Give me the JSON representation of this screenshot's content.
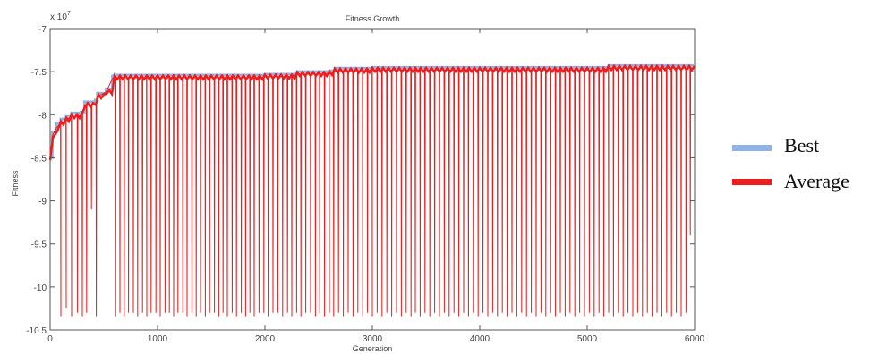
{
  "chart_data": {
    "type": "line",
    "title": "Fitness Growth",
    "xlabel": "Generation",
    "ylabel": "Fitness",
    "y_multiplier_label": "x 10",
    "y_multiplier_exponent": "7",
    "xlim": [
      0,
      6000
    ],
    "ylim": [
      -10.5,
      -7
    ],
    "x_ticks": [
      0,
      1000,
      2000,
      3000,
      4000,
      5000,
      6000
    ],
    "y_ticks": [
      -7,
      -7.5,
      -8,
      -8.5,
      -9,
      -9.5,
      -10,
      -10.5
    ],
    "y_tick_labels": [
      "-7",
      "-7.5",
      "-8",
      "-8.5",
      "-9",
      "-9.5",
      "-10",
      "-10.5"
    ],
    "legend_position": "right",
    "series": [
      {
        "name": "Best",
        "color": "#8fb4e3",
        "x": [
          0,
          20,
          60,
          100,
          150,
          200,
          290,
          320,
          420,
          440,
          520,
          580,
          600,
          900,
          1000,
          1500,
          2000,
          2300,
          2600,
          2650,
          3000,
          3500,
          4000,
          5000,
          5200,
          6000
        ],
        "y": [
          -8.5,
          -8.2,
          -8.1,
          -8.05,
          -8.02,
          -7.98,
          -7.97,
          -7.85,
          -7.83,
          -7.75,
          -7.7,
          -7.55,
          -7.54,
          -7.54,
          -7.54,
          -7.54,
          -7.53,
          -7.5,
          -7.49,
          -7.46,
          -7.45,
          -7.45,
          -7.45,
          -7.45,
          -7.43,
          -7.43
        ]
      },
      {
        "name": "Average",
        "color": "#ee1c1c",
        "plateau_x": [
          0,
          20,
          60,
          100,
          150,
          200,
          290,
          320,
          420,
          440,
          520,
          580,
          600,
          900,
          1000,
          1500,
          2000,
          2300,
          2600,
          2650,
          3000,
          3500,
          4000,
          5000,
          5200,
          6000
        ],
        "plateau_y": [
          -8.55,
          -8.25,
          -8.15,
          -8.1,
          -8.06,
          -8.02,
          -8.0,
          -7.89,
          -7.87,
          -7.79,
          -7.74,
          -7.58,
          -7.57,
          -7.57,
          -7.57,
          -7.57,
          -7.56,
          -7.53,
          -7.52,
          -7.49,
          -7.48,
          -7.48,
          -7.48,
          -7.48,
          -7.46,
          -7.46
        ],
        "dips": [
          [
            100,
            -10.35
          ],
          [
            150,
            -10.25
          ],
          [
            200,
            -10.35
          ],
          [
            255,
            -10.3
          ],
          [
            300,
            -10.35
          ],
          [
            340,
            -10.3
          ],
          [
            385,
            -9.1
          ],
          [
            430,
            -10.35
          ],
          [
            610,
            -10.35
          ],
          [
            650,
            -10.3
          ],
          [
            690,
            -10.35
          ],
          [
            730,
            -10.3
          ],
          [
            775,
            -10.3
          ],
          [
            815,
            -10.35
          ],
          [
            860,
            -10.3
          ],
          [
            900,
            -10.35
          ],
          [
            940,
            -10.3
          ],
          [
            985,
            -10.3
          ],
          [
            1025,
            -10.35
          ],
          [
            1070,
            -10.3
          ],
          [
            1110,
            -10.3
          ],
          [
            1150,
            -10.35
          ],
          [
            1190,
            -10.3
          ],
          [
            1235,
            -10.3
          ],
          [
            1275,
            -10.35
          ],
          [
            1320,
            -10.3
          ],
          [
            1360,
            -10.35
          ],
          [
            1400,
            -10.3
          ],
          [
            1445,
            -10.35
          ],
          [
            1485,
            -10.3
          ],
          [
            1530,
            -10.3
          ],
          [
            1570,
            -10.35
          ],
          [
            1610,
            -10.3
          ],
          [
            1650,
            -10.35
          ],
          [
            1695,
            -10.3
          ],
          [
            1735,
            -10.35
          ],
          [
            1780,
            -10.3
          ],
          [
            1820,
            -10.35
          ],
          [
            1860,
            -10.3
          ],
          [
            1900,
            -10.35
          ],
          [
            1945,
            -10.3
          ],
          [
            1990,
            -10.3
          ],
          [
            2030,
            -10.35
          ],
          [
            2075,
            -10.3
          ],
          [
            2120,
            -10.3
          ],
          [
            2165,
            -10.35
          ],
          [
            2210,
            -10.3
          ],
          [
            2250,
            -10.35
          ],
          [
            2295,
            -10.3
          ],
          [
            2335,
            -10.35
          ],
          [
            2380,
            -10.3
          ],
          [
            2425,
            -10.3
          ],
          [
            2470,
            -10.35
          ],
          [
            2510,
            -10.3
          ],
          [
            2555,
            -10.35
          ],
          [
            2600,
            -10.3
          ],
          [
            2640,
            -10.35
          ],
          [
            2685,
            -10.3
          ],
          [
            2730,
            -10.35
          ],
          [
            2775,
            -10.3
          ],
          [
            2820,
            -10.35
          ],
          [
            2865,
            -10.3
          ],
          [
            2910,
            -10.35
          ],
          [
            2955,
            -10.3
          ],
          [
            3000,
            -10.35
          ],
          [
            3045,
            -10.3
          ],
          [
            3090,
            -10.35
          ],
          [
            3135,
            -10.3
          ],
          [
            3180,
            -10.35
          ],
          [
            3225,
            -10.3
          ],
          [
            3270,
            -10.35
          ],
          [
            3315,
            -10.3
          ],
          [
            3360,
            -10.35
          ],
          [
            3400,
            -10.3
          ],
          [
            3445,
            -10.35
          ],
          [
            3490,
            -10.3
          ],
          [
            3535,
            -10.35
          ],
          [
            3580,
            -10.3
          ],
          [
            3625,
            -10.35
          ],
          [
            3670,
            -10.3
          ],
          [
            3715,
            -10.35
          ],
          [
            3760,
            -10.3
          ],
          [
            3805,
            -10.35
          ],
          [
            3850,
            -10.3
          ],
          [
            3895,
            -10.35
          ],
          [
            3940,
            -10.3
          ],
          [
            3985,
            -10.35
          ],
          [
            4030,
            -10.3
          ],
          [
            4075,
            -10.35
          ],
          [
            4120,
            -10.3
          ],
          [
            4165,
            -10.35
          ],
          [
            4210,
            -10.3
          ],
          [
            4255,
            -10.35
          ],
          [
            4300,
            -10.3
          ],
          [
            4345,
            -10.35
          ],
          [
            4390,
            -10.3
          ],
          [
            4435,
            -10.35
          ],
          [
            4480,
            -10.3
          ],
          [
            4525,
            -10.35
          ],
          [
            4570,
            -10.3
          ],
          [
            4615,
            -10.35
          ],
          [
            4660,
            -10.3
          ],
          [
            4705,
            -10.35
          ],
          [
            4750,
            -10.3
          ],
          [
            4795,
            -10.35
          ],
          [
            4840,
            -10.3
          ],
          [
            4885,
            -10.35
          ],
          [
            4930,
            -10.3
          ],
          [
            4975,
            -10.35
          ],
          [
            5020,
            -10.3
          ],
          [
            5065,
            -10.35
          ],
          [
            5110,
            -10.3
          ],
          [
            5155,
            -10.35
          ],
          [
            5200,
            -10.3
          ],
          [
            5245,
            -10.35
          ],
          [
            5290,
            -10.3
          ],
          [
            5335,
            -10.35
          ],
          [
            5380,
            -10.3
          ],
          [
            5425,
            -10.35
          ],
          [
            5470,
            -10.3
          ],
          [
            5515,
            -10.35
          ],
          [
            5560,
            -10.3
          ],
          [
            5605,
            -10.35
          ],
          [
            5650,
            -10.3
          ],
          [
            5695,
            -10.35
          ],
          [
            5740,
            -10.3
          ],
          [
            5785,
            -10.35
          ],
          [
            5830,
            -10.3
          ],
          [
            5875,
            -10.35
          ],
          [
            5920,
            -10.3
          ],
          [
            5960,
            -9.4
          ]
        ]
      }
    ]
  }
}
